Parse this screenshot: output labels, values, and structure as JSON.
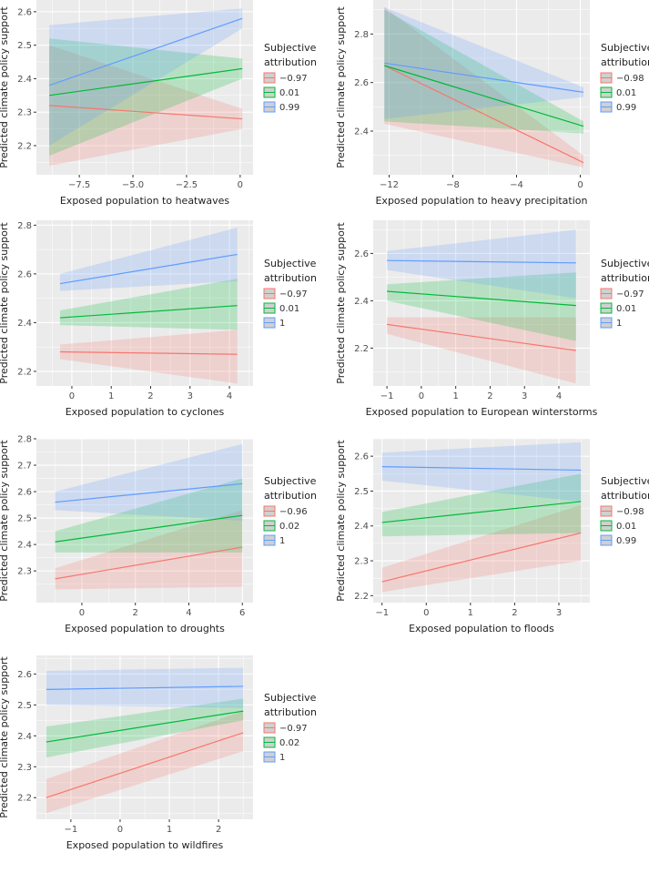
{
  "chart_data": [
    {
      "type": "line",
      "title": "",
      "xlabel": "Exposed population to heatwaves",
      "ylabel": "Predicted climate policy support",
      "xlim": [
        -9.5,
        0.6
      ],
      "ylim": [
        2.113,
        2.635
      ],
      "xticks": [
        -7.5,
        -5,
        -2.5,
        0
      ],
      "xtick_labels": [
        "−7.5",
        "−5.0",
        "−2.5",
        "0"
      ],
      "yticks": [
        2.2,
        2.3,
        2.4,
        2.5,
        2.6
      ],
      "ytick_labels": [
        "2.2",
        "2.3",
        "2.4",
        "2.5",
        "2.6"
      ],
      "x_range": [
        -8.9,
        0.1
      ],
      "legend": {
        "title": [
          "Subjective",
          "attribution"
        ],
        "placement": "right"
      },
      "series": [
        {
          "name": "−0.97",
          "color": "#F8766D",
          "y": [
            2.32,
            2.28
          ],
          "lower": [
            2.14,
            2.25
          ],
          "upper": [
            2.5,
            2.31
          ]
        },
        {
          "name": "0.01",
          "color": "#00BA38",
          "y": [
            2.35,
            2.43
          ],
          "lower": [
            2.17,
            2.4
          ],
          "upper": [
            2.52,
            2.46
          ]
        },
        {
          "name": "0.99",
          "color": "#619CFF",
          "y": [
            2.38,
            2.58
          ],
          "lower": [
            2.2,
            2.55
          ],
          "upper": [
            2.56,
            2.61
          ]
        }
      ]
    },
    {
      "type": "line",
      "title": "",
      "xlabel": "Exposed population to heavy precipitation",
      "ylabel": "Predicted climate policy support",
      "xlim": [
        -13,
        0.6
      ],
      "ylim": [
        2.22,
        2.94
      ],
      "xticks": [
        -12,
        -8,
        -4,
        0
      ],
      "xtick_labels": [
        "−12",
        "−8",
        "−4",
        "0"
      ],
      "yticks": [
        2.4,
        2.6,
        2.8
      ],
      "ytick_labels": [
        "2.4",
        "2.6",
        "2.8"
      ],
      "x_range": [
        -12.3,
        0.2
      ],
      "legend": {
        "title": [
          "Subjective",
          "attribution"
        ],
        "placement": "right"
      },
      "series": [
        {
          "name": "−0.98",
          "color": "#F8766D",
          "y": [
            2.67,
            2.27
          ],
          "lower": [
            2.43,
            2.25
          ],
          "upper": [
            2.91,
            2.3
          ]
        },
        {
          "name": "0.01",
          "color": "#00BA38",
          "y": [
            2.67,
            2.42
          ],
          "lower": [
            2.44,
            2.39
          ],
          "upper": [
            2.9,
            2.44
          ]
        },
        {
          "name": "0.99",
          "color": "#619CFF",
          "y": [
            2.68,
            2.56
          ],
          "lower": [
            2.45,
            2.54
          ],
          "upper": [
            2.91,
            2.58
          ]
        }
      ]
    },
    {
      "type": "line",
      "title": "",
      "xlabel": "Exposed population to cyclones",
      "ylabel": "Predicted climate policy support",
      "xlim": [
        -0.9,
        4.6
      ],
      "ylim": [
        2.14,
        2.82
      ],
      "xticks": [
        0,
        1,
        2,
        3,
        4
      ],
      "xtick_labels": [
        "0",
        "1",
        "2",
        "3",
        "4"
      ],
      "yticks": [
        2.2,
        2.4,
        2.6,
        2.8
      ],
      "ytick_labels": [
        "2.2",
        "2.4",
        "2.6",
        "2.8"
      ],
      "x_range": [
        -0.3,
        4.2
      ],
      "legend": {
        "title": [
          "Subjective",
          "attribution"
        ],
        "placement": "right"
      },
      "series": [
        {
          "name": "−0.97",
          "color": "#F8766D",
          "y": [
            2.28,
            2.27
          ],
          "lower": [
            2.25,
            2.15
          ],
          "upper": [
            2.31,
            2.37
          ]
        },
        {
          "name": "0.01",
          "color": "#00BA38",
          "y": [
            2.42,
            2.47
          ],
          "lower": [
            2.39,
            2.37
          ],
          "upper": [
            2.45,
            2.58
          ]
        },
        {
          "name": "1",
          "color": "#619CFF",
          "y": [
            2.56,
            2.68
          ],
          "lower": [
            2.53,
            2.57
          ],
          "upper": [
            2.6,
            2.79
          ]
        }
      ]
    },
    {
      "type": "line",
      "title": "",
      "xlabel": "Exposed population to European winterstorms",
      "ylabel": "Predicted climate policy support",
      "xlim": [
        -1.4,
        4.9
      ],
      "ylim": [
        2.04,
        2.74
      ],
      "xticks": [
        -1,
        0,
        1,
        2,
        3,
        4
      ],
      "xtick_labels": [
        "−1",
        "0",
        "1",
        "2",
        "3",
        "4"
      ],
      "yticks": [
        2.2,
        2.4,
        2.6
      ],
      "ytick_labels": [
        "2.2",
        "2.4",
        "2.6"
      ],
      "x_range": [
        -1,
        4.5
      ],
      "legend": {
        "title": [
          "Subjective",
          "attribution"
        ],
        "placement": "right"
      },
      "series": [
        {
          "name": "−0.97",
          "color": "#F8766D",
          "y": [
            2.3,
            2.19
          ],
          "lower": [
            2.26,
            2.05
          ],
          "upper": [
            2.33,
            2.33
          ]
        },
        {
          "name": "0.01",
          "color": "#00BA38",
          "y": [
            2.44,
            2.38
          ],
          "lower": [
            2.4,
            2.23
          ],
          "upper": [
            2.47,
            2.52
          ]
        },
        {
          "name": "1",
          "color": "#619CFF",
          "y": [
            2.57,
            2.56
          ],
          "lower": [
            2.53,
            2.41
          ],
          "upper": [
            2.61,
            2.7
          ]
        }
      ]
    },
    {
      "type": "line",
      "title": "",
      "xlabel": "Exposed population to droughts",
      "ylabel": "Predicted climate policy support",
      "xlim": [
        -1.7,
        6.4
      ],
      "ylim": [
        2.18,
        2.8
      ],
      "xticks": [
        0,
        2,
        4,
        6
      ],
      "xtick_labels": [
        "0",
        "2",
        "4",
        "6"
      ],
      "yticks": [
        2.3,
        2.4,
        2.5,
        2.6,
        2.7,
        2.8
      ],
      "ytick_labels": [
        "2.3",
        "2.4",
        "2.5",
        "2.6",
        "2.7",
        "2.8"
      ],
      "x_range": [
        -1,
        6
      ],
      "legend": {
        "title": [
          "Subjective",
          "attribution"
        ],
        "placement": "right"
      },
      "series": [
        {
          "name": "−0.96",
          "color": "#F8766D",
          "y": [
            2.27,
            2.39
          ],
          "lower": [
            2.23,
            2.24
          ],
          "upper": [
            2.31,
            2.53
          ]
        },
        {
          "name": "0.02",
          "color": "#00BA38",
          "y": [
            2.41,
            2.51
          ],
          "lower": [
            2.37,
            2.37
          ],
          "upper": [
            2.45,
            2.65
          ]
        },
        {
          "name": "1",
          "color": "#619CFF",
          "y": [
            2.56,
            2.63
          ],
          "lower": [
            2.53,
            2.49
          ],
          "upper": [
            2.6,
            2.78
          ]
        }
      ]
    },
    {
      "type": "line",
      "title": "",
      "xlabel": "Exposed population to floods",
      "ylabel": "Predicted climate policy support",
      "xlim": [
        -1.2,
        3.7
      ],
      "ylim": [
        2.18,
        2.65
      ],
      "xticks": [
        -1,
        0,
        1,
        2,
        3
      ],
      "xtick_labels": [
        "−1",
        "0",
        "1",
        "2",
        "3"
      ],
      "yticks": [
        2.2,
        2.3,
        2.4,
        2.5,
        2.6
      ],
      "ytick_labels": [
        "2.2",
        "2.3",
        "2.4",
        "2.5",
        "2.6"
      ],
      "x_range": [
        -1,
        3.5
      ],
      "legend": {
        "title": [
          "Subjective",
          "attribution"
        ],
        "placement": "right"
      },
      "series": [
        {
          "name": "−0.98",
          "color": "#F8766D",
          "y": [
            2.24,
            2.38
          ],
          "lower": [
            2.21,
            2.3
          ],
          "upper": [
            2.28,
            2.46
          ]
        },
        {
          "name": "0.01",
          "color": "#00BA38",
          "y": [
            2.41,
            2.47
          ],
          "lower": [
            2.37,
            2.38
          ],
          "upper": [
            2.44,
            2.55
          ]
        },
        {
          "name": "0.99",
          "color": "#619CFF",
          "y": [
            2.57,
            2.56
          ],
          "lower": [
            2.53,
            2.47
          ],
          "upper": [
            2.61,
            2.64
          ]
        }
      ]
    },
    {
      "type": "line",
      "title": "",
      "xlabel": "Exposed population to wildfires",
      "ylabel": "Predicted climate policy support",
      "xlim": [
        -1.7,
        2.7
      ],
      "ylim": [
        2.13,
        2.66
      ],
      "xticks": [
        -1,
        0,
        1,
        2
      ],
      "xtick_labels": [
        "−1",
        "0",
        "1",
        "2"
      ],
      "yticks": [
        2.2,
        2.3,
        2.4,
        2.5,
        2.6
      ],
      "ytick_labels": [
        "2.2",
        "2.3",
        "2.4",
        "2.5",
        "2.6"
      ],
      "x_range": [
        -1.5,
        2.5
      ],
      "legend": {
        "title": [
          "Subjective",
          "attribution"
        ],
        "placement": "right"
      },
      "series": [
        {
          "name": "−0.97",
          "color": "#F8766D",
          "y": [
            2.2,
            2.41
          ],
          "lower": [
            2.15,
            2.35
          ],
          "upper": [
            2.26,
            2.48
          ]
        },
        {
          "name": "0.02",
          "color": "#00BA38",
          "y": [
            2.38,
            2.48
          ],
          "lower": [
            2.33,
            2.45
          ],
          "upper": [
            2.43,
            2.52
          ]
        },
        {
          "name": "1",
          "color": "#619CFF",
          "y": [
            2.55,
            2.56
          ],
          "lower": [
            2.5,
            2.49
          ],
          "upper": [
            2.61,
            2.62
          ]
        }
      ]
    }
  ]
}
